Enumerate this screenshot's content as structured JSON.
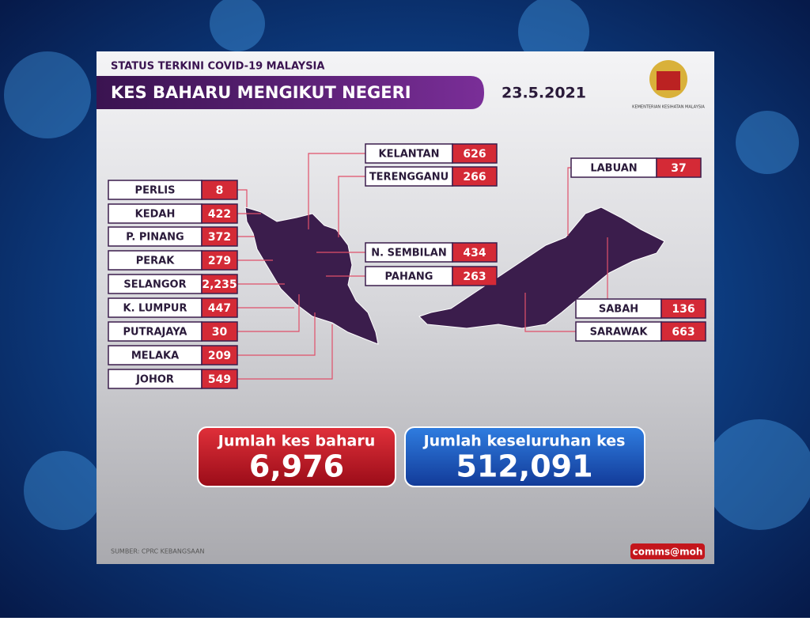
{
  "header": {
    "subtitle": "STATUS TERKINI COVID-19 MALAYSIA",
    "title": "KES BAHARU MENGIKUT NEGERI",
    "date": "23.5.2021",
    "ministry": "KEMENTERIAN KESIHATAN MALAYSIA"
  },
  "states": [
    {
      "name": "PERLIS",
      "cases": "8"
    },
    {
      "name": "KEDAH",
      "cases": "422"
    },
    {
      "name": "P. PINANG",
      "cases": "372"
    },
    {
      "name": "PERAK",
      "cases": "279"
    },
    {
      "name": "SELANGOR",
      "cases": "2,235"
    },
    {
      "name": "K. LUMPUR",
      "cases": "447"
    },
    {
      "name": "PUTRAJAYA",
      "cases": "30"
    },
    {
      "name": "MELAKA",
      "cases": "209"
    },
    {
      "name": "JOHOR",
      "cases": "549"
    },
    {
      "name": "KELANTAN",
      "cases": "626"
    },
    {
      "name": "TERENGGANU",
      "cases": "266"
    },
    {
      "name": "N. SEMBILAN",
      "cases": "434"
    },
    {
      "name": "PAHANG",
      "cases": "263"
    },
    {
      "name": "LABUAN",
      "cases": "37"
    },
    {
      "name": "SABAH",
      "cases": "136"
    },
    {
      "name": "SARAWAK",
      "cases": "663"
    }
  ],
  "totals": {
    "new_label": "Jumlah kes baharu",
    "new_value": "6,976",
    "total_label": "Jumlah keseluruhan kes",
    "total_value": "512,091"
  },
  "footer": {
    "source": "SUMBER: CPRC KEBANGSAAN",
    "credit": "comms@moh"
  }
}
